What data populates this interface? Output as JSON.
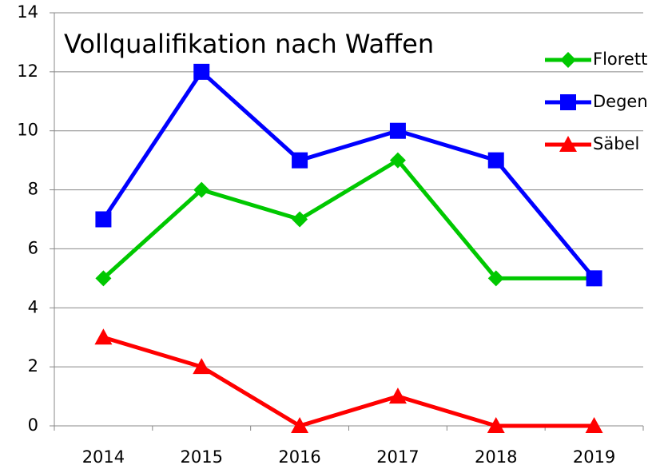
{
  "chart_data": {
    "type": "line",
    "title": "Vollqualifikation nach Waffen",
    "categories": [
      "2014",
      "2015",
      "2016",
      "2017",
      "2018",
      "2019"
    ],
    "series": [
      {
        "name": "Florett",
        "color": "#00c800",
        "marker": "diamond",
        "values": [
          5,
          8,
          7,
          9,
          5,
          5
        ]
      },
      {
        "name": "Degen",
        "color": "#0000ff",
        "marker": "square",
        "values": [
          7,
          12,
          9,
          10,
          9,
          5
        ]
      },
      {
        "name": "Säbel",
        "color": "#ff0000",
        "marker": "triangle",
        "values": [
          3,
          2,
          0,
          1,
          0,
          0
        ]
      }
    ],
    "ylim": [
      0,
      14
    ],
    "yticks": [
      0,
      2,
      4,
      6,
      8,
      10,
      12,
      14
    ],
    "grid": true,
    "legend": "upper right"
  }
}
